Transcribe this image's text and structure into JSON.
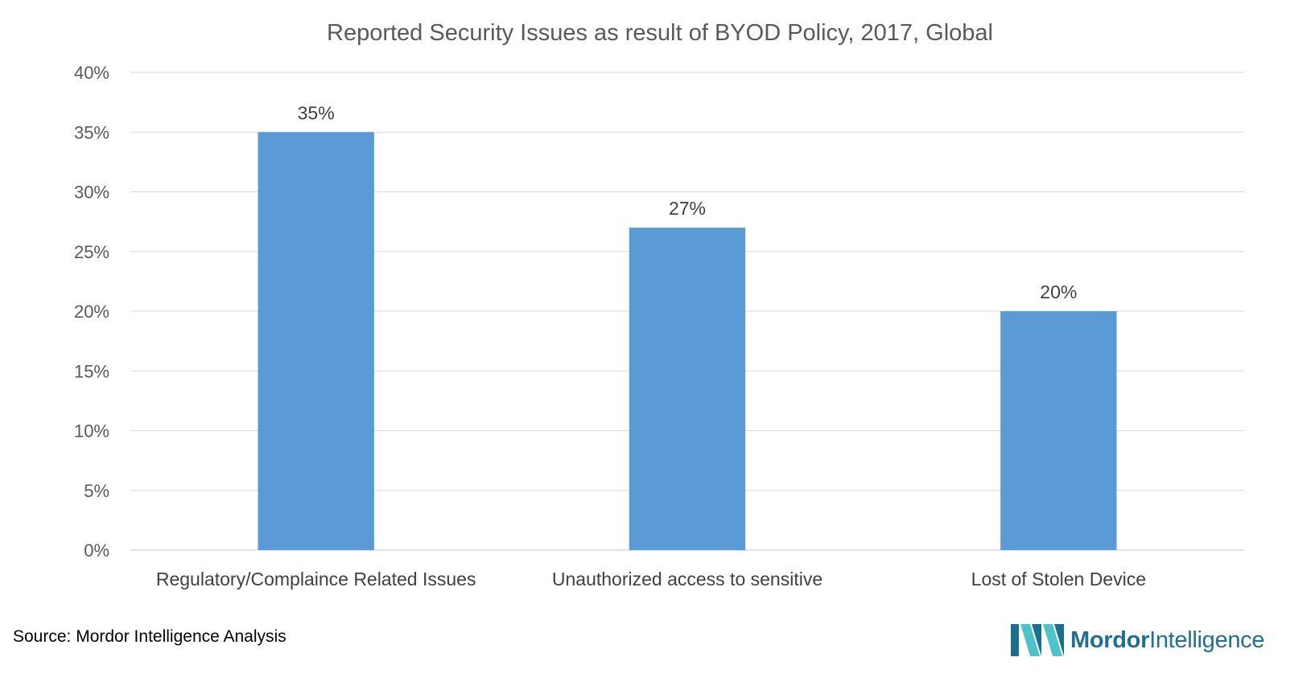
{
  "chart_data": {
    "type": "bar",
    "title": "Reported Security Issues as result of BYOD Policy, 2017, Global",
    "categories": [
      "Regulatory/Complaince Related Issues",
      "Unauthorized access to sensitive",
      "Lost of Stolen Device"
    ],
    "values": [
      35,
      27,
      20
    ],
    "data_labels": [
      "35%",
      "27%",
      "20%"
    ],
    "xlabel": "",
    "ylabel": "",
    "ylim": [
      0,
      40
    ],
    "yticks": [
      0,
      5,
      10,
      15,
      20,
      25,
      30,
      35,
      40
    ],
    "ytick_labels": [
      "0%",
      "5%",
      "10%",
      "15%",
      "20%",
      "25%",
      "30%",
      "35%",
      "40%"
    ],
    "grid": true,
    "legend": "none",
    "bar_color": "#5b9bd5"
  },
  "footer": {
    "source": "Source: Mordor Intelligence Analysis"
  },
  "logo": {
    "brand_bold": "Mordor",
    "brand_light": "Intelligence",
    "icon": "mordor-intelligence-logo-icon",
    "colors": {
      "dark_teal": "#1b6f8e",
      "light_teal": "#4fc3c8",
      "text": "#1f6f93"
    }
  }
}
